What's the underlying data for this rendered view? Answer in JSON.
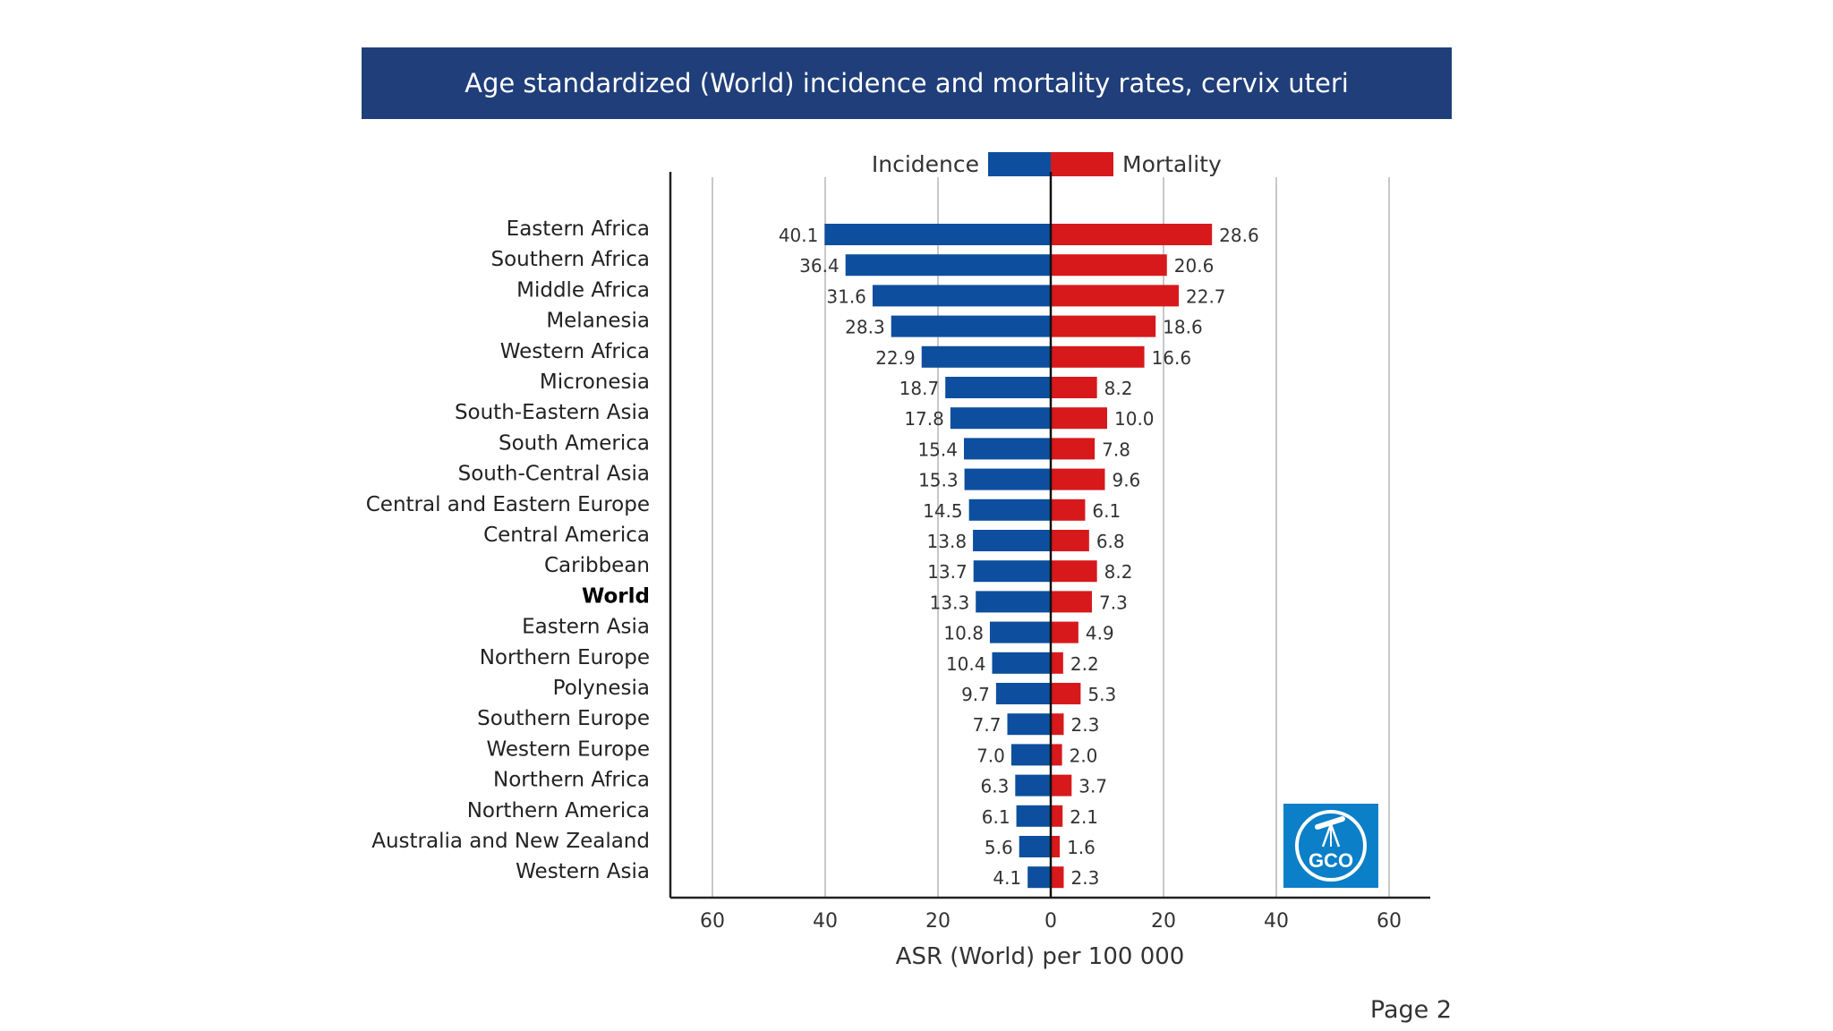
{
  "title": "Age standardized (World) incidence and mortality rates, cervix uteri",
  "page_label": "Page 2",
  "logo_text": "GCO",
  "colors": {
    "title_bg": "#1f3e7a",
    "incidence": "#0d4f9e",
    "mortality": "#d7191c",
    "logo_bg": "#0b7fc7"
  },
  "chart_data": {
    "type": "bar",
    "orientation": "horizontal-diverging",
    "title": "Age standardized (World) incidence and mortality rates, cervix uteri",
    "xlabel": "ASR (World) per 100 000",
    "ylabel": "",
    "xlim": [
      -65,
      65
    ],
    "xticks": [
      60,
      40,
      20,
      0,
      20,
      40,
      60
    ],
    "legend": "top-center",
    "grid": "vertical",
    "categories": [
      "Eastern Africa",
      "Southern Africa",
      "Middle Africa",
      "Melanesia",
      "Western Africa",
      "Micronesia",
      "South-Eastern Asia",
      "South America",
      "South-Central Asia",
      "Central and Eastern Europe",
      "Central America",
      "Caribbean",
      "World",
      "Eastern Asia",
      "Northern Europe",
      "Polynesia",
      "Southern Europe",
      "Western Europe",
      "Northern Africa",
      "Northern America",
      "Australia and New Zealand",
      "Western Asia"
    ],
    "highlight_category": "World",
    "series": [
      {
        "name": "Incidence",
        "side": "left",
        "values": [
          40.1,
          36.4,
          31.6,
          28.3,
          22.9,
          18.7,
          17.8,
          15.4,
          15.3,
          14.5,
          13.8,
          13.7,
          13.3,
          10.8,
          10.4,
          9.7,
          7.7,
          7.0,
          6.3,
          6.1,
          5.6,
          4.1
        ],
        "labels": [
          "40.1",
          "36.4",
          "31.6",
          "28.3",
          "22.9",
          "18.7",
          "17.8",
          "15.4",
          "15.3",
          "14.5",
          "13.8",
          "13.7",
          "13.3",
          "10.8",
          "10.4",
          "9.7",
          "7.7",
          "7.0",
          "6.3",
          "6.1",
          "5.6",
          "4.1"
        ]
      },
      {
        "name": "Mortality",
        "side": "right",
        "values": [
          28.6,
          20.6,
          22.7,
          18.6,
          16.6,
          8.2,
          10.0,
          7.8,
          9.6,
          6.1,
          6.8,
          8.2,
          7.3,
          4.9,
          2.2,
          5.3,
          2.3,
          2.0,
          3.7,
          2.1,
          1.6,
          2.3
        ],
        "labels": [
          "28.6",
          "20.6",
          "22.7",
          "18.6",
          "16.6",
          "8.2",
          "10.0",
          "7.8",
          "9.6",
          "6.1",
          "6.8",
          "8.2",
          "7.3",
          "4.9",
          "2.2",
          "5.3",
          "2.3",
          "2.0",
          "3.7",
          "2.1",
          "1.6",
          "2.3"
        ]
      }
    ]
  }
}
